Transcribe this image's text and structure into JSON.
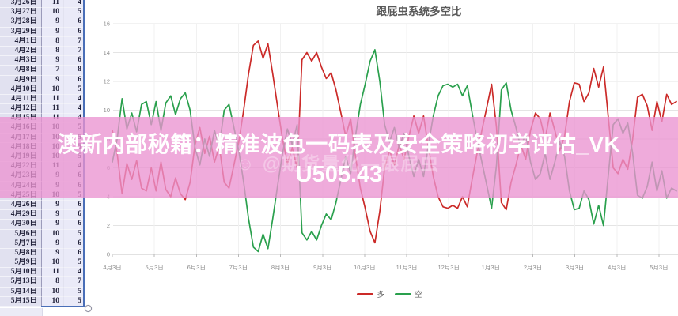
{
  "table": {
    "rows": [
      {
        "date": "3月26日",
        "long": 11,
        "short": 4
      },
      {
        "date": "3月27日",
        "long": 10,
        "short": 5
      },
      {
        "date": "3月28日",
        "long": 9,
        "short": 6
      },
      {
        "date": "3月29日",
        "long": 9,
        "short": 6
      },
      {
        "date": "4月1日",
        "long": 8,
        "short": 7
      },
      {
        "date": "4月2日",
        "long": 8,
        "short": 7
      },
      {
        "date": "4月3日",
        "long": 9,
        "short": 6
      },
      {
        "date": "4月8日",
        "long": 7,
        "short": 8
      },
      {
        "date": "4月9日",
        "long": 9,
        "short": 6
      },
      {
        "date": "4月10日",
        "long": 10,
        "short": 5
      },
      {
        "date": "4月11日",
        "long": 11,
        "short": 4
      },
      {
        "date": "4月12日",
        "long": 11,
        "short": 4
      },
      {
        "date": "4月15日",
        "long": 11,
        "short": 4
      },
      {
        "date": "4月16日",
        "long": 10,
        "short": 5
      },
      {
        "date": "4月17日",
        "long": 10,
        "short": 5
      },
      {
        "date": "4月18日",
        "long": 10,
        "short": 5
      },
      {
        "date": "4月19日",
        "long": 10,
        "short": 5
      },
      {
        "date": "4月22日",
        "long": 11,
        "short": 4
      },
      {
        "date": "4月23日",
        "long": 9,
        "short": 6
      },
      {
        "date": "4月24日",
        "long": 9,
        "short": 6
      },
      {
        "date": "4月25日",
        "long": 10,
        "short": 5
      },
      {
        "date": "4月26日",
        "long": 9,
        "short": 6
      },
      {
        "date": "4月29日",
        "long": 9,
        "short": 6
      },
      {
        "date": "4月30日",
        "long": 9,
        "short": 6
      },
      {
        "date": "5月6日",
        "long": 10,
        "short": 5
      },
      {
        "date": "5月7日",
        "long": 9,
        "short": 6
      },
      {
        "date": "5月8日",
        "long": 9,
        "short": 6
      },
      {
        "date": "5月9日",
        "long": 10,
        "short": 5
      },
      {
        "date": "5月10日",
        "long": 11,
        "short": 4
      },
      {
        "date": "5月13日",
        "long": 8,
        "short": 7
      },
      {
        "date": "5月14日",
        "long": 10,
        "short": 5
      },
      {
        "date": "5月15日",
        "long": 10,
        "short": 5
      }
    ]
  },
  "chart_data": {
    "type": "line",
    "title": "跟屁虫系统多空比",
    "x_ticks": [
      "4月3日",
      "5月3日",
      "6月3日",
      "7月3日",
      "8月3日",
      "9月3日",
      "10月3日",
      "11月3日",
      "12月3日",
      "1月3日",
      "2月3日",
      "3月3日",
      "4月3日",
      "5月3日"
    ],
    "ylim": [
      0,
      16
    ],
    "y_tick_step": 2,
    "grid": true,
    "legend_position": "bottom",
    "series": [
      {
        "name": "多",
        "color": "#cb2a28",
        "values": [
          8.6,
          7.0,
          4.2,
          6.3,
          5.2,
          6.5,
          4.6,
          4.4,
          6.0,
          4.4,
          6.4,
          4.5,
          4.0,
          5.3,
          4.2,
          3.8,
          5.0,
          7.6,
          8.8,
          7.0,
          8.2,
          6.4,
          7.5,
          5.0,
          4.6,
          6.2,
          7.8,
          10.0,
          12.5,
          14.5,
          14.8,
          13.6,
          14.6,
          12.5,
          10.2,
          8.0,
          6.3,
          7.4,
          6.0,
          13.5,
          14.0,
          13.4,
          14.0,
          13.0,
          12.2,
          12.6,
          11.4,
          9.8,
          8.2,
          9.4,
          6.8,
          4.6,
          3.2,
          1.6,
          0.8,
          3.0,
          6.0,
          7.2,
          6.2,
          7.6,
          6.6,
          8.2,
          9.6,
          8.4,
          9.6,
          7.4,
          5.4,
          4.0,
          3.3,
          3.2,
          3.4,
          3.2,
          4.0,
          3.3,
          5.2,
          7.0,
          8.6,
          10.2,
          11.8,
          8.8,
          3.6,
          3.1,
          5.0,
          6.2,
          7.6,
          6.6,
          8.6,
          9.8,
          9.4,
          8.0,
          9.8,
          8.6,
          7.2,
          8.2,
          10.6,
          11.9,
          11.8,
          10.6,
          11.2,
          12.9,
          11.6,
          13.0,
          9.5,
          6.0,
          5.6,
          6.6,
          5.9,
          8.0,
          10.9,
          11.1,
          10.3,
          8.6,
          10.6,
          9.2,
          11.1,
          10.4,
          10.6
        ]
      },
      {
        "name": "空",
        "color": "#2aa04d",
        "values": [
          6.4,
          8.0,
          10.8,
          8.7,
          9.8,
          8.5,
          10.4,
          10.6,
          9.0,
          10.6,
          8.6,
          10.5,
          11.0,
          9.7,
          10.8,
          11.2,
          10.0,
          7.4,
          6.2,
          8.0,
          6.8,
          8.6,
          7.5,
          10.0,
          10.4,
          8.8,
          7.2,
          5.0,
          2.5,
          0.5,
          0.2,
          1.4,
          0.4,
          2.5,
          4.8,
          7.0,
          8.7,
          7.6,
          9.0,
          1.5,
          1.0,
          1.6,
          1.0,
          2.0,
          2.8,
          2.4,
          3.6,
          5.2,
          6.8,
          5.6,
          8.2,
          10.4,
          11.8,
          13.4,
          14.2,
          12.0,
          9.0,
          7.8,
          8.8,
          7.4,
          8.4,
          6.8,
          5.4,
          6.6,
          5.4,
          7.6,
          9.6,
          11.0,
          11.7,
          11.8,
          11.6,
          11.8,
          11.0,
          11.7,
          9.8,
          8.0,
          6.4,
          4.8,
          3.2,
          6.2,
          11.4,
          11.9,
          10.0,
          8.8,
          7.4,
          8.4,
          6.4,
          5.2,
          5.6,
          7.0,
          5.2,
          6.4,
          7.8,
          6.8,
          4.4,
          3.1,
          3.2,
          4.4,
          3.8,
          2.1,
          3.4,
          2.0,
          5.5,
          9.0,
          9.4,
          8.4,
          9.1,
          7.0,
          4.1,
          3.9,
          4.7,
          6.4,
          4.4,
          5.8,
          3.9,
          4.6,
          4.4
        ]
      }
    ]
  },
  "watermark": {
    "line1": "澳新内部秘籍：精准波色一码表及安全策略初学评估_VK",
    "line2": "U505.43",
    "faint": "☺ @期货量化—跟屁虫",
    "band_color": "rgba(235,148,209,0.78)"
  }
}
